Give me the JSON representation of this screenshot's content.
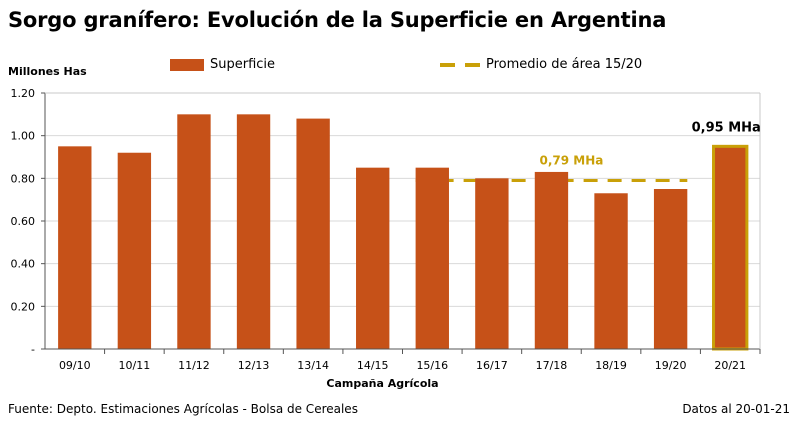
{
  "title": "Sorgo granífero: Evolución de la Superficie en Argentina",
  "colors": {
    "bar": "#c65118",
    "highlight_outline": "#c9a008",
    "average_line": "#c9a008",
    "axis": "#000000",
    "grid": "#d9d9d9"
  },
  "chart_data": {
    "type": "bar",
    "title": "Sorgo granífero: Evolución de la Superficie en Argentina",
    "ylabel": "Millones Has",
    "xlabel": "Campaña Agrícola",
    "ylim": [
      0,
      1.2
    ],
    "yticks": [
      "-",
      "0.20",
      "0.40",
      "0.60",
      "0.80",
      "1.00",
      "1.20"
    ],
    "categories": [
      "09/10",
      "10/11",
      "11/12",
      "12/13",
      "13/14",
      "14/15",
      "15/16",
      "16/17",
      "17/18",
      "18/19",
      "19/20",
      "20/21"
    ],
    "series": [
      {
        "name": "Superficie",
        "values": [
          0.95,
          0.92,
          1.1,
          1.1,
          1.08,
          0.85,
          0.85,
          0.8,
          0.83,
          0.73,
          0.75,
          0.95
        ]
      }
    ],
    "average": {
      "name": "Promedio de área 15/20",
      "value": 0.79,
      "label": "0,79 MHa",
      "from": "15/16",
      "to": "19/20"
    },
    "highlight": {
      "category": "20/21",
      "label": "0,95 MHa"
    },
    "legend": [
      "Superficie",
      "Promedio de área 15/20"
    ],
    "grid": true
  },
  "footer": {
    "source": "Fuente: Depto. Estimaciones Agrícolas - Bolsa de Cereales",
    "date": "Datos al 20-01-21"
  }
}
